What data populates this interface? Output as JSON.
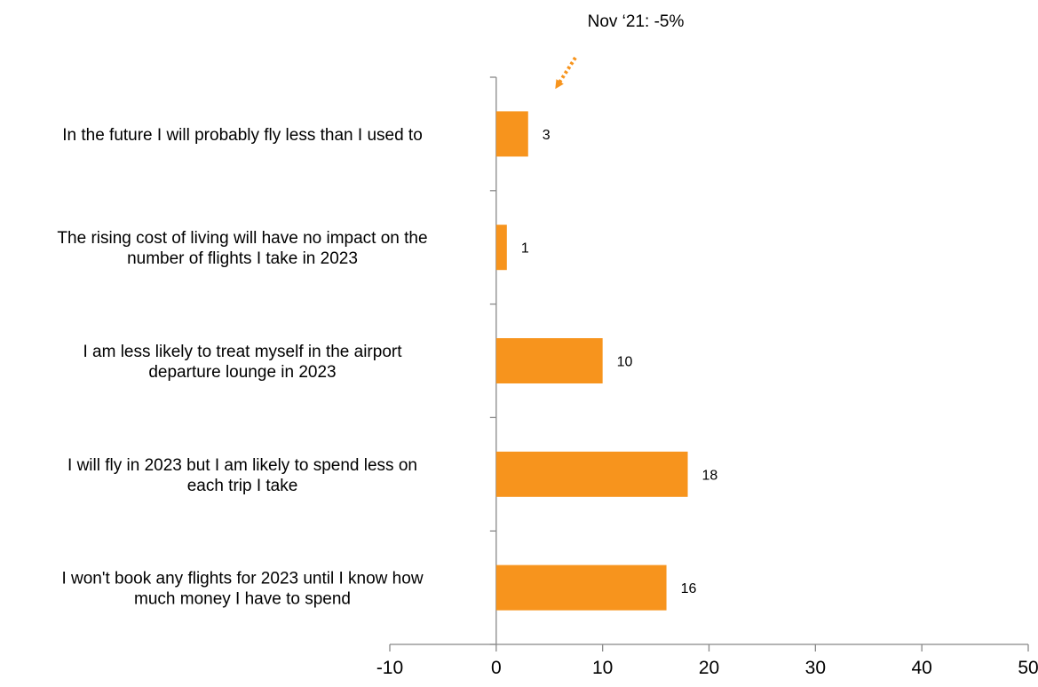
{
  "chart_data": {
    "type": "bar",
    "orientation": "horizontal",
    "categories": [
      "In the future I will probably fly less than I used to",
      "The rising cost of living will have no impact on the number of flights I take in 2023",
      "I am less likely to treat myself in the airport departure lounge in 2023",
      "I will fly in 2023 but I am likely to spend less on each trip I take",
      "I won't book any flights for 2023 until I know how much money I have to spend"
    ],
    "category_label_lines": [
      [
        "In the future I will probably fly less than I used to"
      ],
      [
        "The rising cost of living will have no impact on the",
        "number of flights I take in 2023"
      ],
      [
        "I am less likely to treat myself in the airport",
        "departure lounge in 2023"
      ],
      [
        "I will fly in 2023 but I am likely to spend less on",
        "each trip I take"
      ],
      [
        "I won't book any flights for 2023 until I know how",
        "much money I have to spend"
      ]
    ],
    "values": [
      3,
      1,
      10,
      18,
      16
    ],
    "data_labels": [
      "3",
      "1",
      "10",
      "18",
      "16"
    ],
    "xlim": [
      -10,
      50
    ],
    "xticks": [
      -10,
      0,
      10,
      20,
      30,
      40,
      50
    ],
    "xtick_labels": [
      "-10",
      "0",
      "10",
      "20",
      "30",
      "40",
      "50"
    ],
    "title": "",
    "xlabel": "",
    "ylabel": "",
    "grid": false,
    "legend": "none",
    "bar_color": "#F7941D",
    "annotation": {
      "text": "Nov ‘21: -5%",
      "points_to_category": "In the future I will probably fly less than I used to",
      "arrow_style": "dotted",
      "arrow_color": "#F7941D"
    }
  }
}
